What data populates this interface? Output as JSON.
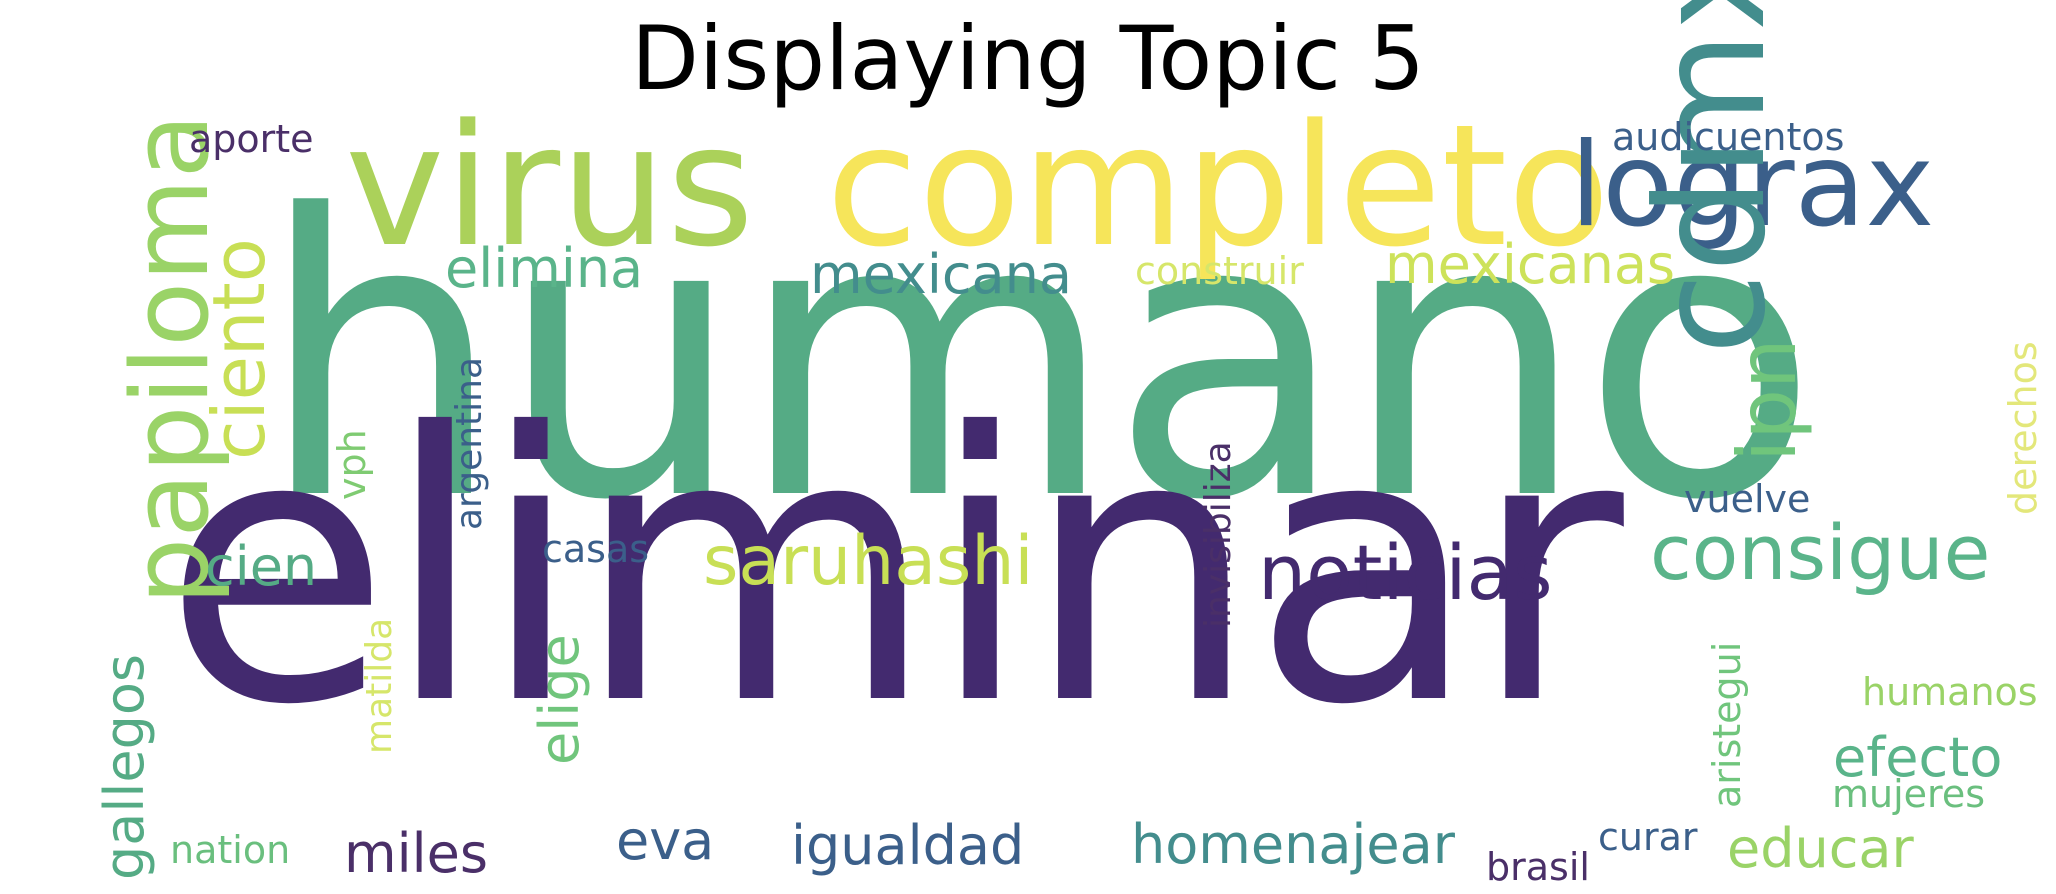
{
  "title": "Displaying Topic 5",
  "words": [
    {
      "text": "humano",
      "color": "#55ab85"
    },
    {
      "text": "eliminar",
      "color": "#432a6f"
    },
    {
      "text": "virus",
      "color": "#abd15a"
    },
    {
      "text": "completo",
      "color": "#f6e55a"
    },
    {
      "text": "lograx",
      "color": "#3b5f8a"
    },
    {
      "text": "cdmx",
      "color": "#438d8d"
    },
    {
      "text": "papiloma",
      "color": "#9ad367"
    },
    {
      "text": "ciento",
      "color": "#c8df55"
    },
    {
      "text": "elimina",
      "color": "#5ab48a"
    },
    {
      "text": "mexicana",
      "color": "#438d8d"
    },
    {
      "text": "construir",
      "color": "#d6e66a"
    },
    {
      "text": "mexicanas",
      "color": "#cde25a"
    },
    {
      "text": "ipn",
      "color": "#70c57c"
    },
    {
      "text": "audicuentos",
      "color": "#3b5f8a"
    },
    {
      "text": "aporte",
      "color": "#4a2f68"
    },
    {
      "text": "saruhashi",
      "color": "#c8df55"
    },
    {
      "text": "noticias",
      "color": "#432a6f"
    },
    {
      "text": "consigue",
      "color": "#5ab48a"
    },
    {
      "text": "cien",
      "color": "#55ab85"
    },
    {
      "text": "casas",
      "color": "#3b5f8a"
    },
    {
      "text": "vuelve",
      "color": "#3b5f8a"
    },
    {
      "text": "argentina",
      "color": "#3b5f8a"
    },
    {
      "text": "vph",
      "color": "#7fcb72"
    },
    {
      "text": "invisibiliza",
      "color": "#4a2f68"
    },
    {
      "text": "derechos",
      "color": "#e3e77a"
    },
    {
      "text": "matilda",
      "color": "#d6e66a"
    },
    {
      "text": "gallegos",
      "color": "#55ab85"
    },
    {
      "text": "elige",
      "color": "#70c57c"
    },
    {
      "text": "aristegui",
      "color": "#70c57c"
    },
    {
      "text": "humanos",
      "color": "#9ad367"
    },
    {
      "text": "efecto",
      "color": "#5ab48a"
    },
    {
      "text": "mujeres",
      "color": "#6abf7e"
    },
    {
      "text": "nation",
      "color": "#6abf7e"
    },
    {
      "text": "miles",
      "color": "#4a2f68"
    },
    {
      "text": "eva",
      "color": "#3b5f8a"
    },
    {
      "text": "igualdad",
      "color": "#3b5f8a"
    },
    {
      "text": "homenajear",
      "color": "#438d8d"
    },
    {
      "text": "curar",
      "color": "#3b5f8a"
    },
    {
      "text": "brasil",
      "color": "#4a2f68"
    },
    {
      "text": "educar",
      "color": "#9ad367"
    }
  ]
}
